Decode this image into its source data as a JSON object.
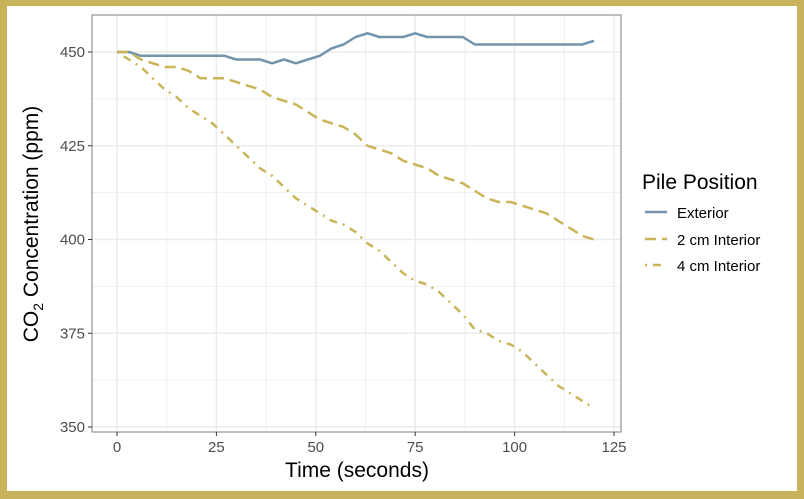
{
  "colors": {
    "border": "#c8b35a",
    "exterior": "#7394ab",
    "interior": "#c9b458",
    "grid": "#ebebeb",
    "panel_border": "#7f7f7f"
  },
  "chart_data": {
    "type": "line",
    "title": "",
    "xlabel": "Time (seconds)",
    "ylabel": "CO2 Concentration (ppm)",
    "xlim": [
      -3,
      126
    ],
    "ylim": [
      349,
      460
    ],
    "xticks": [
      0,
      25,
      50,
      75,
      100,
      125
    ],
    "yticks": [
      350,
      375,
      400,
      425,
      450
    ],
    "grid": true,
    "legend_position": "right",
    "legend_title": "Pile Position",
    "x": [
      0,
      3,
      6,
      9,
      12,
      15,
      18,
      21,
      24,
      27,
      30,
      33,
      36,
      39,
      42,
      45,
      48,
      51,
      54,
      57,
      60,
      63,
      66,
      69,
      72,
      75,
      78,
      81,
      84,
      87,
      90,
      93,
      96,
      99,
      102,
      105,
      108,
      111,
      114,
      117,
      120
    ],
    "series": [
      {
        "name": "Exterior",
        "linestyle": "solid",
        "values": [
          450,
          450,
          449,
          449,
          449,
          449,
          449,
          449,
          449,
          449,
          448,
          448,
          448,
          447,
          448,
          447,
          448,
          449,
          451,
          452,
          454,
          455,
          454,
          454,
          454,
          455,
          454,
          454,
          454,
          454,
          452,
          452,
          452,
          452,
          452,
          452,
          452,
          452,
          452,
          452,
          453
        ]
      },
      {
        "name": "2 cm Interior",
        "linestyle": "dashed",
        "values": [
          450,
          450,
          448,
          447,
          446,
          446,
          445,
          443,
          443,
          443,
          442,
          441,
          440,
          438,
          437,
          436,
          434,
          432,
          431,
          430,
          428,
          425,
          424,
          423,
          421,
          420,
          419,
          417,
          416,
          415,
          413,
          411,
          410,
          410,
          409,
          408,
          407,
          405,
          403,
          401,
          400
        ]
      },
      {
        "name": "4 cm Interior",
        "linestyle": "dotdash",
        "values": [
          450,
          448,
          446,
          443,
          440,
          438,
          435,
          433,
          431,
          428,
          425,
          422,
          419,
          417,
          414,
          411,
          409,
          407,
          405,
          404,
          402,
          399,
          397,
          394,
          391,
          389,
          388,
          386,
          383,
          380,
          376,
          375,
          373,
          372,
          370,
          367,
          364,
          361,
          359,
          357,
          355
        ]
      }
    ]
  },
  "axes": {
    "x_title": "Time (seconds)",
    "y_title_main": "CO",
    "y_title_sub": "2",
    "y_title_rest": " Concentration (ppm)"
  },
  "legend": {
    "title": "Pile Position",
    "items": [
      "Exterior",
      "2 cm Interior",
      "4 cm Interior"
    ]
  }
}
